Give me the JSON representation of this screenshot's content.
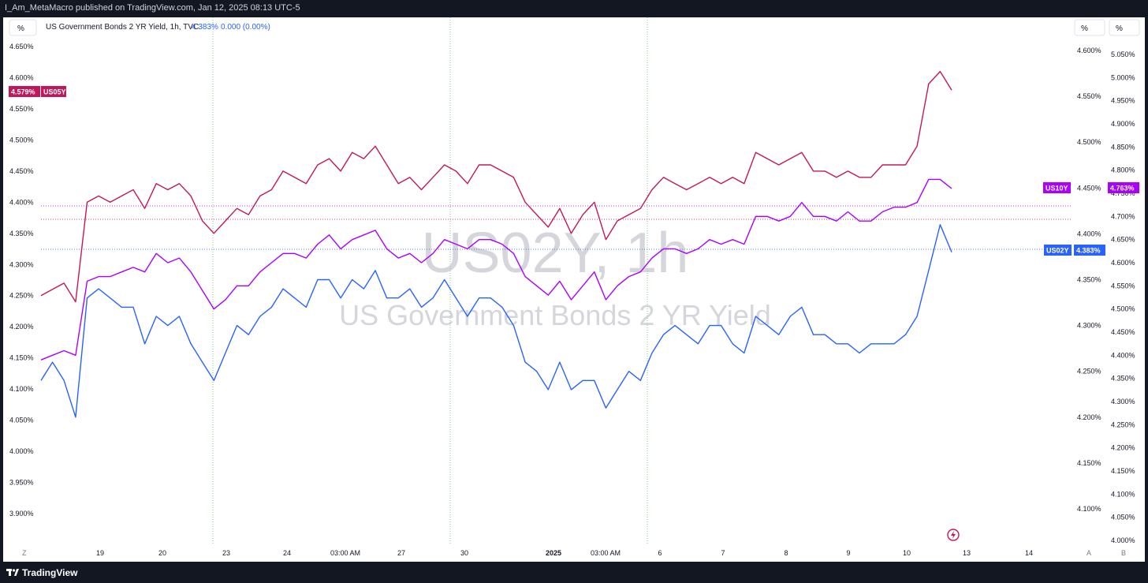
{
  "header": {
    "published_text": "I_Am_MetaMacro published on TradingView.com, Jan 12, 2025 08:13 UTC-5"
  },
  "legend": {
    "scale_button": "%",
    "symbol_text": "US Government Bonds 2 YR Yield, 1h, TVC",
    "price": "4.383%",
    "change": "0.000 (0.00%)"
  },
  "right_buttons": [
    "%",
    "%"
  ],
  "watermark": {
    "line1": "US02Y, 1h",
    "line2": "US Government Bonds 2 YR Yield"
  },
  "footer": {
    "brand": "TradingView"
  },
  "bottom_corner": {
    "left": "Z",
    "auto": "A",
    "b": "B"
  },
  "colors": {
    "us02y": "#2962ff",
    "us05y": "#c2185b",
    "us10y": "#aa00ff",
    "background": "#ffffff",
    "frame": "#131722"
  },
  "chart_data": {
    "type": "line",
    "x_labels": [
      "19",
      "20",
      "23",
      "24",
      "03:00 AM",
      "27",
      "30",
      "2025",
      "03:00 AM",
      "6",
      "7",
      "8",
      "9",
      "10",
      "13",
      "14"
    ],
    "left_axis": {
      "ticks": [
        "4.650%",
        "4.600%",
        "4.550%",
        "4.500%",
        "4.450%",
        "4.400%",
        "4.350%",
        "4.300%",
        "4.250%",
        "4.200%",
        "4.150%",
        "4.100%",
        "4.050%",
        "4.000%",
        "3.950%",
        "3.900%"
      ],
      "range": [
        3.88,
        4.66
      ]
    },
    "right_axis_1": {
      "ticks": [
        "4.600%",
        "4.550%",
        "4.500%",
        "4.450%",
        "4.400%",
        "4.350%",
        "4.300%",
        "4.250%",
        "4.200%",
        "4.150%",
        "4.100%"
      ],
      "range": [
        4.09,
        4.61
      ]
    },
    "right_axis_2": {
      "ticks": [
        "5.050%",
        "5.000%",
        "4.950%",
        "4.900%",
        "4.850%",
        "4.800%",
        "4.750%",
        "4.700%",
        "4.650%",
        "4.600%",
        "4.550%",
        "4.500%",
        "4.450%",
        "4.400%",
        "4.350%",
        "4.300%",
        "4.250%",
        "4.200%",
        "4.150%",
        "4.100%",
        "4.050%",
        "4.000%"
      ],
      "range": [
        4.0,
        5.06
      ]
    },
    "series": [
      {
        "name": "US05Y",
        "axis": "left",
        "last_label": "4.579%",
        "points": [
          4.25,
          4.26,
          4.27,
          4.24,
          4.4,
          4.41,
          4.4,
          4.41,
          4.42,
          4.39,
          4.43,
          4.42,
          4.43,
          4.41,
          4.37,
          4.35,
          4.37,
          4.39,
          4.38,
          4.41,
          4.42,
          4.45,
          4.44,
          4.43,
          4.46,
          4.47,
          4.45,
          4.48,
          4.47,
          4.49,
          4.46,
          4.43,
          4.44,
          4.42,
          4.44,
          4.46,
          4.45,
          4.43,
          4.46,
          4.46,
          4.45,
          4.44,
          4.4,
          4.38,
          4.36,
          4.39,
          4.35,
          4.38,
          4.4,
          4.34,
          4.37,
          4.38,
          4.39,
          4.42,
          4.44,
          4.43,
          4.42,
          4.43,
          4.44,
          4.43,
          4.44,
          4.43,
          4.48,
          4.47,
          4.46,
          4.47,
          4.48,
          4.45,
          4.45,
          4.44,
          4.45,
          4.44,
          4.44,
          4.46,
          4.46,
          4.46,
          4.49,
          4.59,
          4.61,
          4.58
        ]
      },
      {
        "name": "US10Y",
        "axis": "right2",
        "last_label": "4.763%",
        "points": [
          4.39,
          4.4,
          4.41,
          4.4,
          4.56,
          4.57,
          4.57,
          4.58,
          4.59,
          4.58,
          4.62,
          4.6,
          4.61,
          4.58,
          4.54,
          4.5,
          4.52,
          4.55,
          4.55,
          4.58,
          4.6,
          4.62,
          4.62,
          4.61,
          4.64,
          4.66,
          4.63,
          4.65,
          4.66,
          4.67,
          4.63,
          4.61,
          4.62,
          4.6,
          4.62,
          4.65,
          4.64,
          4.63,
          4.65,
          4.65,
          4.64,
          4.62,
          4.57,
          4.55,
          4.53,
          4.56,
          4.52,
          4.55,
          4.58,
          4.52,
          4.55,
          4.57,
          4.58,
          4.61,
          4.63,
          4.63,
          4.62,
          4.63,
          4.65,
          4.64,
          4.65,
          4.64,
          4.7,
          4.7,
          4.69,
          4.7,
          4.73,
          4.7,
          4.7,
          4.69,
          4.71,
          4.69,
          4.69,
          4.71,
          4.72,
          4.72,
          4.73,
          4.78,
          4.78,
          4.76
        ]
      },
      {
        "name": "US02Y",
        "axis": "right1",
        "last_label": "4.383%",
        "points": [
          4.24,
          4.26,
          4.24,
          4.2,
          4.33,
          4.34,
          4.33,
          4.32,
          4.32,
          4.28,
          4.31,
          4.3,
          4.31,
          4.28,
          4.26,
          4.24,
          4.27,
          4.3,
          4.29,
          4.31,
          4.32,
          4.34,
          4.33,
          4.32,
          4.35,
          4.35,
          4.33,
          4.35,
          4.34,
          4.36,
          4.33,
          4.33,
          4.34,
          4.32,
          4.33,
          4.35,
          4.33,
          4.31,
          4.33,
          4.33,
          4.32,
          4.3,
          4.26,
          4.25,
          4.23,
          4.26,
          4.23,
          4.24,
          4.24,
          4.21,
          4.23,
          4.25,
          4.24,
          4.27,
          4.29,
          4.3,
          4.29,
          4.28,
          4.3,
          4.3,
          4.28,
          4.27,
          4.31,
          4.3,
          4.29,
          4.31,
          4.32,
          4.29,
          4.29,
          4.28,
          4.28,
          4.27,
          4.28,
          4.28,
          4.28,
          4.29,
          4.31,
          4.36,
          4.41,
          4.38
        ]
      }
    ],
    "reference_lines": [
      {
        "series": "US10Y",
        "value": 4.74
      },
      {
        "series": "US05Y",
        "value": 4.375
      },
      {
        "series": "US02Y",
        "value": 4.383
      }
    ],
    "grid": false
  }
}
